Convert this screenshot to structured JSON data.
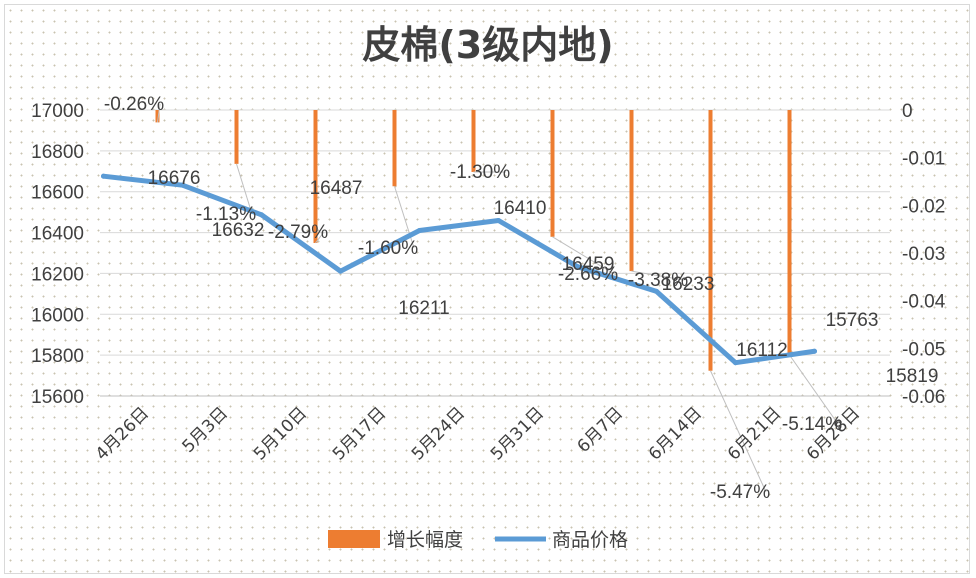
{
  "chart_data": {
    "type": "bar+line",
    "title": "皮棉(3级内地)",
    "categories": [
      "4月26日",
      "5月3日",
      "5月10日",
      "5月17日",
      "5月24日",
      "5月31日",
      "6月7日",
      "6月14日",
      "6月21日",
      "6月28日"
    ],
    "series": [
      {
        "name": "增长幅度",
        "type": "bar",
        "axis": "right",
        "color": "#ED7D31",
        "values": [
          -0.0026,
          -0.0113,
          -0.0279,
          -0.016,
          -0.013,
          -0.0266,
          -0.0338,
          -0.0547,
          -0.0514,
          null
        ],
        "labels": [
          "-0.26%",
          "-1.13%",
          "-2.79%",
          "-1.60%",
          "-1.30%",
          "-2.66%",
          "-3.38%",
          "-5.47%",
          "-5.14%",
          ""
        ]
      },
      {
        "name": "商品价格",
        "type": "line",
        "axis": "left",
        "color": "#5B9BD5",
        "values": [
          16676,
          16632,
          16487,
          16211,
          16410,
          16459,
          16233,
          16112,
          15763,
          15819
        ],
        "labels": [
          "16676",
          "16632",
          "16487",
          "16211",
          "16410",
          "16459",
          "16233",
          "16112",
          "15763",
          "15819"
        ]
      }
    ],
    "left_axis": {
      "ylim": [
        15600,
        17000
      ],
      "ticks": [
        "17000",
        "16800",
        "16600",
        "16400",
        "16200",
        "16000",
        "15800",
        "15600"
      ]
    },
    "right_axis": {
      "ylim": [
        -0.06,
        0
      ],
      "ticks": [
        "0",
        "-0.01",
        "-0.02",
        "-0.03",
        "-0.04",
        "-0.05",
        "-0.06"
      ]
    },
    "gridlines": true,
    "legend_position": "bottom"
  }
}
